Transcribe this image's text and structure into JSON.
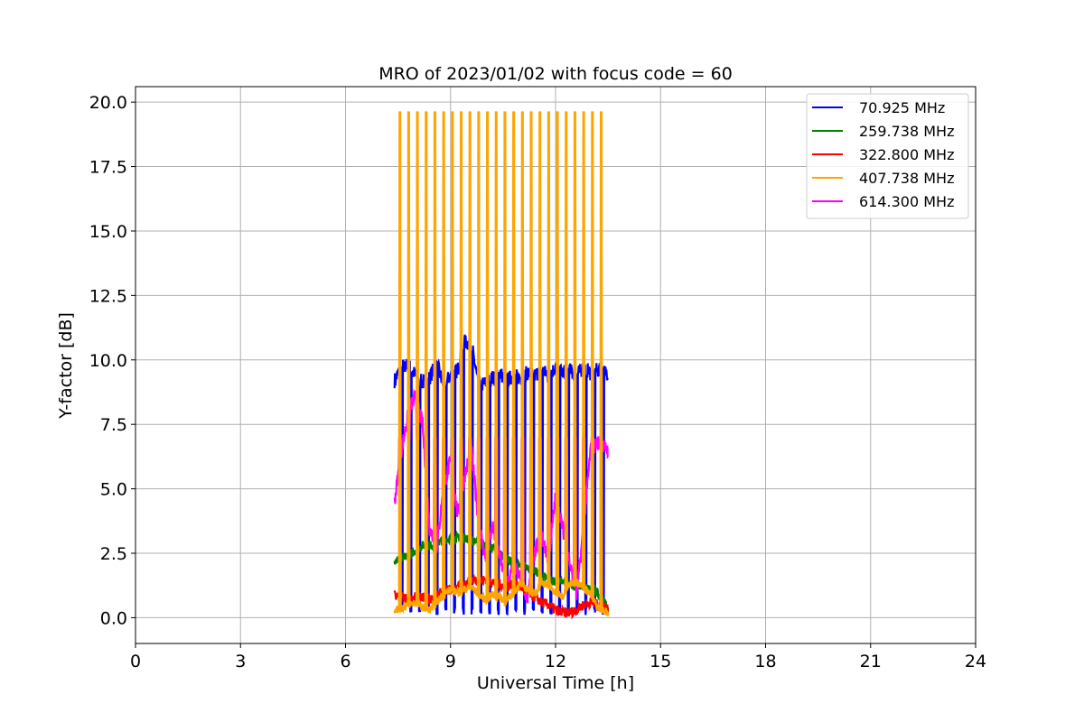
{
  "chart_data": {
    "type": "line",
    "title": "MRO of 2023/01/02 with focus code = 60",
    "xlabel": "Universal Time [h]",
    "ylabel": "Y-factor [dB]",
    "xlim": [
      0,
      24
    ],
    "ylim": [
      -1.0,
      20.6
    ],
    "xticks": [
      0,
      3,
      6,
      9,
      12,
      15,
      18,
      21,
      24
    ],
    "xtick_labels": [
      "0",
      "3",
      "6",
      "9",
      "12",
      "15",
      "18",
      "21",
      "24"
    ],
    "yticks": [
      0.0,
      2.5,
      5.0,
      7.5,
      10.0,
      12.5,
      15.0,
      17.5,
      20.0
    ],
    "ytick_labels": [
      "0.0",
      "2.5",
      "5.0",
      "7.5",
      "10.0",
      "12.5",
      "15.0",
      "17.5",
      "20.0"
    ],
    "grid": true,
    "legend_position": "top-right",
    "series": [
      {
        "name": "  70.925 MHz",
        "color": "#0000ff",
        "x": [
          7.4,
          7.6,
          7.8,
          8.0,
          8.2,
          8.4,
          8.6,
          8.8,
          9.0,
          9.2,
          9.4,
          9.6,
          9.8,
          10.0,
          10.2,
          10.4,
          10.6,
          10.8,
          11.0,
          11.2,
          11.4,
          11.6,
          11.8,
          12.0,
          12.2,
          12.4,
          12.6,
          12.8,
          13.0,
          13.2,
          13.5
        ],
        "y": [
          9.2,
          9.7,
          9.8,
          9.4,
          9.1,
          9.3,
          9.9,
          9.0,
          9.4,
          9.6,
          10.7,
          10.6,
          9.0,
          9.1,
          9.3,
          9.5,
          9.2,
          9.4,
          9.3,
          9.5,
          9.4,
          9.6,
          9.4,
          9.7,
          9.5,
          9.6,
          9.4,
          9.7,
          9.5,
          9.6,
          9.5
        ]
      },
      {
        "name": "259.738 MHz",
        "color": "#008000",
        "x": [
          7.4,
          7.6,
          7.8,
          8.0,
          8.2,
          8.4,
          8.6,
          8.8,
          9.0,
          9.2,
          9.4,
          9.6,
          9.8,
          10.0,
          10.2,
          10.4,
          10.6,
          10.8,
          11.0,
          11.2,
          11.4,
          11.6,
          11.8,
          12.0,
          12.2,
          12.4,
          12.6,
          12.8,
          13.0,
          13.2,
          13.5
        ],
        "y": [
          2.2,
          2.3,
          2.4,
          2.6,
          2.8,
          2.8,
          2.9,
          3.0,
          3.1,
          3.1,
          3.1,
          3.0,
          2.9,
          2.8,
          2.7,
          2.5,
          2.3,
          2.1,
          2.0,
          2.0,
          1.8,
          1.7,
          1.5,
          1.4,
          1.4,
          1.3,
          1.2,
          1.2,
          1.1,
          1.0,
          0.3
        ]
      },
      {
        "name": "322.800 MHz",
        "color": "#ff0000",
        "x": [
          7.4,
          7.6,
          7.8,
          8.0,
          8.2,
          8.4,
          8.6,
          8.8,
          9.0,
          9.2,
          9.4,
          9.6,
          9.8,
          10.0,
          10.2,
          10.4,
          10.6,
          10.8,
          11.0,
          11.2,
          11.4,
          11.6,
          11.8,
          12.0,
          12.2,
          12.4,
          12.6,
          12.8,
          13.0,
          13.2,
          13.5
        ],
        "y": [
          0.9,
          0.8,
          0.7,
          0.8,
          0.8,
          0.7,
          0.9,
          1.0,
          1.1,
          1.2,
          1.3,
          1.5,
          1.4,
          1.5,
          1.4,
          1.3,
          1.2,
          1.3,
          1.2,
          1.0,
          0.8,
          0.6,
          0.5,
          0.3,
          0.2,
          0.2,
          0.3,
          0.5,
          0.6,
          0.5,
          0.4
        ]
      },
      {
        "name": "407.738 MHz",
        "color": "#ffa500",
        "baseline_x": [
          7.4,
          7.6,
          7.8,
          8.0,
          8.2,
          8.4,
          8.6,
          8.8,
          9.0,
          9.2,
          9.4,
          9.6,
          9.8,
          10.0,
          10.2,
          10.4,
          10.6,
          10.8,
          11.0,
          11.2,
          11.4,
          11.6,
          11.8,
          12.0,
          12.2,
          12.4,
          12.6,
          12.8,
          13.0,
          13.2,
          13.5
        ],
        "baseline_y": [
          0.3,
          0.4,
          0.5,
          0.6,
          0.4,
          0.3,
          0.6,
          0.9,
          1.1,
          1.0,
          1.1,
          1.2,
          0.9,
          0.7,
          0.9,
          0.8,
          0.6,
          1.0,
          1.3,
          1.1,
          0.9,
          1.4,
          1.2,
          1.0,
          0.8,
          1.3,
          1.4,
          1.2,
          0.9,
          0.4,
          0.2
        ],
        "spike_x": [
          7.55,
          7.8,
          8.05,
          8.3,
          8.55,
          8.8,
          9.05,
          9.3,
          9.55,
          9.8,
          10.05,
          10.3,
          10.55,
          10.8,
          11.05,
          11.3,
          11.55,
          11.8,
          12.05,
          12.3,
          12.55,
          12.8,
          13.05,
          13.3
        ],
        "spike_y": [
          19.6,
          19.6,
          19.6,
          19.6,
          19.6,
          19.6,
          19.6,
          19.6,
          19.6,
          19.6,
          19.6,
          19.6,
          19.6,
          19.6,
          19.6,
          19.6,
          19.6,
          19.6,
          19.6,
          19.6,
          19.6,
          19.6,
          19.6,
          19.6
        ]
      },
      {
        "name": "614.300 MHz",
        "color": "#ff00ff",
        "x": [
          7.4,
          7.6,
          7.8,
          8.0,
          8.2,
          8.4,
          8.6,
          8.8,
          9.0,
          9.2,
          9.4,
          9.6,
          9.8,
          10.0,
          10.2,
          10.4,
          10.6,
          10.8,
          11.0,
          11.2,
          11.4,
          11.6,
          11.8,
          12.0,
          12.2,
          12.4,
          12.6,
          12.8,
          13.0,
          13.2,
          13.5
        ],
        "y": [
          4.5,
          6.5,
          8.0,
          8.6,
          7.5,
          3.5,
          2.7,
          5.0,
          6.1,
          4.0,
          5.5,
          6.5,
          3.7,
          2.3,
          3.5,
          2.5,
          1.2,
          2.0,
          1.5,
          0.8,
          2.5,
          3.2,
          2.2,
          4.7,
          3.5,
          2.2,
          0.8,
          3.5,
          6.5,
          6.8,
          6.5
        ],
        "plateau_y": 6.95
      }
    ]
  }
}
